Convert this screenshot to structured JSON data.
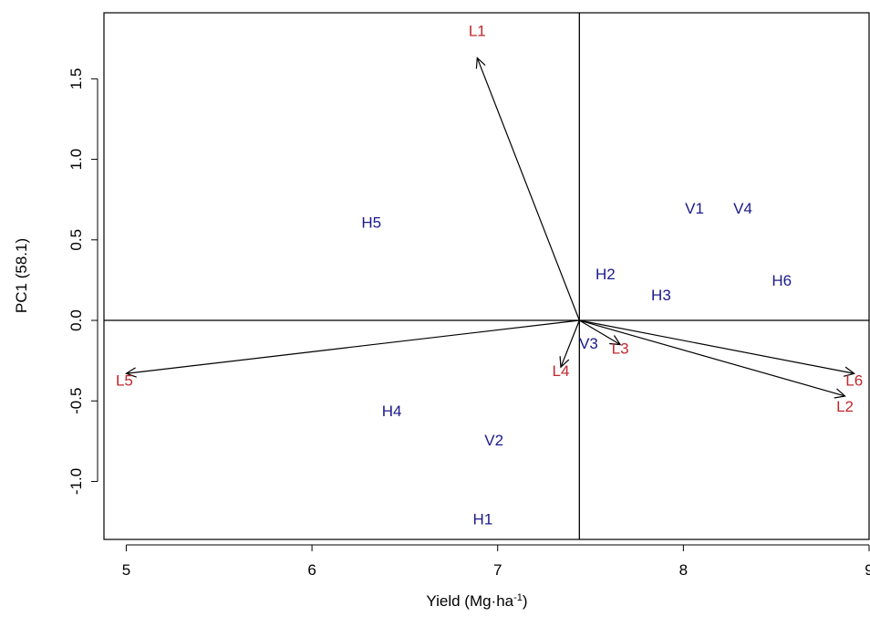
{
  "chart_data": {
    "type": "scatter",
    "title": "",
    "xlabel": "Yield (Mg·ha",
    "xlabel_superscript": "-1",
    "xlabel_suffix": ")",
    "ylabel": "PC1 (58.1)",
    "xlim": [
      4.88,
      9.0
    ],
    "ylim": [
      -1.36,
      1.91
    ],
    "xticks": [
      5,
      6,
      7,
      8,
      9
    ],
    "xtick_labels": [
      "5",
      "6",
      "7",
      "8",
      "9"
    ],
    "yticks": [
      -1.0,
      -0.5,
      0.0,
      0.5,
      1.0,
      1.5
    ],
    "ytick_labels": [
      "-1.0",
      "-0.5",
      "0.0",
      "0.5",
      "1.0",
      "1.5"
    ],
    "reference_lines": {
      "x": 7.44,
      "y": 0.0
    },
    "grid": false,
    "genotypes": {
      "color": "#1a1a8c",
      "points": [
        {
          "label": "V1",
          "x": 8.06,
          "y": 0.69
        },
        {
          "label": "V4",
          "x": 8.32,
          "y": 0.69
        },
        {
          "label": "H5",
          "x": 6.32,
          "y": 0.6
        },
        {
          "label": "H2",
          "x": 7.58,
          "y": 0.28
        },
        {
          "label": "H3",
          "x": 7.88,
          "y": 0.15
        },
        {
          "label": "H6",
          "x": 8.53,
          "y": 0.24
        },
        {
          "label": "V3",
          "x": 7.49,
          "y": -0.15
        },
        {
          "label": "H4",
          "x": 6.43,
          "y": -0.57
        },
        {
          "label": "V2",
          "x": 6.98,
          "y": -0.75
        },
        {
          "label": "H1",
          "x": 6.92,
          "y": -1.24
        }
      ]
    },
    "environments": {
      "color": "#c0282d",
      "vectors": [
        {
          "label": "L1",
          "x": 6.89,
          "y": 1.63,
          "label_x": 6.89,
          "label_y": 1.79
        },
        {
          "label": "L2",
          "x": 8.87,
          "y": -0.47,
          "label_x": 8.87,
          "label_y": -0.54
        },
        {
          "label": "L3",
          "x": 7.66,
          "y": -0.15,
          "label_x": 7.66,
          "label_y": -0.18
        },
        {
          "label": "L4",
          "x": 7.34,
          "y": -0.29,
          "label_x": 7.34,
          "label_y": -0.32
        },
        {
          "label": "L5",
          "x": 5.0,
          "y": -0.33,
          "label_x": 4.99,
          "label_y": -0.38
        },
        {
          "label": "L6",
          "x": 8.92,
          "y": -0.33,
          "label_x": 8.92,
          "label_y": -0.38
        }
      ]
    }
  }
}
